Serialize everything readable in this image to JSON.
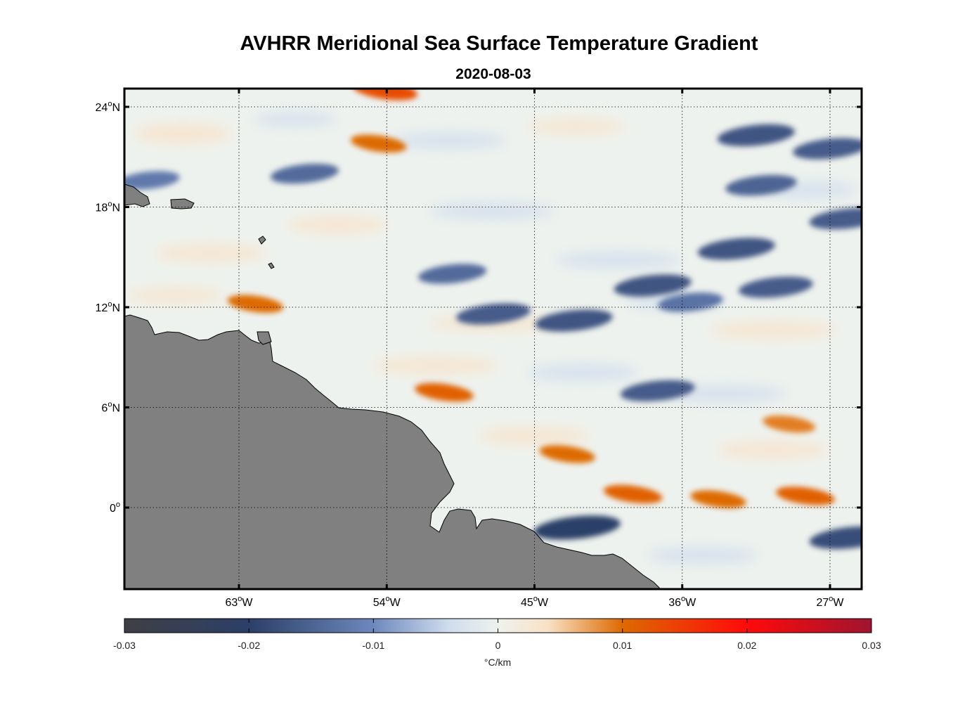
{
  "title": "AVHRR Meridional Sea Surface Temperature Gradient",
  "subtitle": "2020-08-03",
  "map": {
    "region": "Western tropical Atlantic",
    "lon_range": [
      -70,
      -25
    ],
    "lat_range": [
      -5,
      25
    ],
    "grid": "dotted",
    "land_color": "#808080",
    "lat_ticks": [
      {
        "value": 24,
        "label": "24",
        "hemi": "N"
      },
      {
        "value": 18,
        "label": "18",
        "hemi": "N"
      },
      {
        "value": 12,
        "label": "12",
        "hemi": "N"
      },
      {
        "value": 6,
        "label": "6",
        "hemi": "N"
      },
      {
        "value": 0,
        "label": "0",
        "hemi": ""
      }
    ],
    "lon_ticks": [
      {
        "value": -63,
        "label": "63",
        "hemi": "W"
      },
      {
        "value": -54,
        "label": "54",
        "hemi": "W"
      },
      {
        "value": -45,
        "label": "45",
        "hemi": "W"
      },
      {
        "value": -36,
        "label": "36",
        "hemi": "W"
      },
      {
        "value": -27,
        "label": "27",
        "hemi": "W"
      }
    ],
    "features": [
      {
        "kind": "positive",
        "lon": -54.5,
        "lat": 21.8,
        "value": 0.01
      },
      {
        "kind": "positive",
        "lon": -54.1,
        "lat": 25.0,
        "value": 0.013
      },
      {
        "kind": "positive",
        "lon": -62.0,
        "lat": 12.2,
        "value": 0.01
      },
      {
        "kind": "positive",
        "lon": -50.5,
        "lat": 6.9,
        "value": 0.011
      },
      {
        "kind": "positive",
        "lon": -43.0,
        "lat": 3.2,
        "value": 0.01
      },
      {
        "kind": "positive",
        "lon": -39.0,
        "lat": 0.8,
        "value": 0.011
      },
      {
        "kind": "positive",
        "lon": -33.8,
        "lat": 0.5,
        "value": 0.01
      },
      {
        "kind": "positive",
        "lon": -28.5,
        "lat": 0.7,
        "value": 0.011
      },
      {
        "kind": "positive",
        "lon": -29.5,
        "lat": 5.0,
        "value": 0.009
      },
      {
        "kind": "negative",
        "lon": -50.0,
        "lat": 14.0,
        "value": -0.014
      },
      {
        "kind": "negative",
        "lon": -47.5,
        "lat": 11.6,
        "value": -0.016
      },
      {
        "kind": "negative",
        "lon": -42.6,
        "lat": 11.2,
        "value": -0.017
      },
      {
        "kind": "negative",
        "lon": -35.5,
        "lat": 12.3,
        "value": -0.013
      },
      {
        "kind": "negative",
        "lon": -37.8,
        "lat": 13.3,
        "value": -0.017
      },
      {
        "kind": "negative",
        "lon": -37.5,
        "lat": 7.0,
        "value": -0.016
      },
      {
        "kind": "negative",
        "lon": -32.7,
        "lat": 15.5,
        "value": -0.017
      },
      {
        "kind": "negative",
        "lon": -30.3,
        "lat": 13.2,
        "value": -0.016
      },
      {
        "kind": "negative",
        "lon": -31.5,
        "lat": 22.3,
        "value": -0.017
      },
      {
        "kind": "negative",
        "lon": -31.2,
        "lat": 19.3,
        "value": -0.015
      },
      {
        "kind": "negative",
        "lon": -27.0,
        "lat": 21.5,
        "value": -0.016
      },
      {
        "kind": "negative",
        "lon": -26.0,
        "lat": 17.3,
        "value": -0.016
      },
      {
        "kind": "negative",
        "lon": -42.4,
        "lat": -1.2,
        "value": -0.02
      },
      {
        "kind": "negative",
        "lon": -25.8,
        "lat": -1.8,
        "value": -0.018
      },
      {
        "kind": "negative",
        "lon": -59.0,
        "lat": 20.0,
        "value": -0.014
      },
      {
        "kind": "negative",
        "lon": -68.5,
        "lat": 19.6,
        "value": -0.012
      }
    ]
  },
  "colorbar": {
    "ticks": [
      "-0.03",
      "-0.02",
      "-0.01",
      "0",
      "0.01",
      "0.02",
      "0.03"
    ],
    "min": -0.03,
    "max": 0.03,
    "label": "°C/km",
    "stops": [
      {
        "value": -0.03,
        "color": "#3f3f45"
      },
      {
        "value": -0.02,
        "color": "#2c3f68"
      },
      {
        "value": -0.01,
        "color": "#6d88bd"
      },
      {
        "value": -0.004,
        "color": "#cfdcee"
      },
      {
        "value": 0,
        "color": "#eef2ee"
      },
      {
        "value": 0.004,
        "color": "#f9e1c6"
      },
      {
        "value": 0.01,
        "color": "#dd6a00"
      },
      {
        "value": 0.02,
        "color": "#ff0a0a"
      },
      {
        "value": 0.03,
        "color": "#a01430"
      }
    ]
  }
}
